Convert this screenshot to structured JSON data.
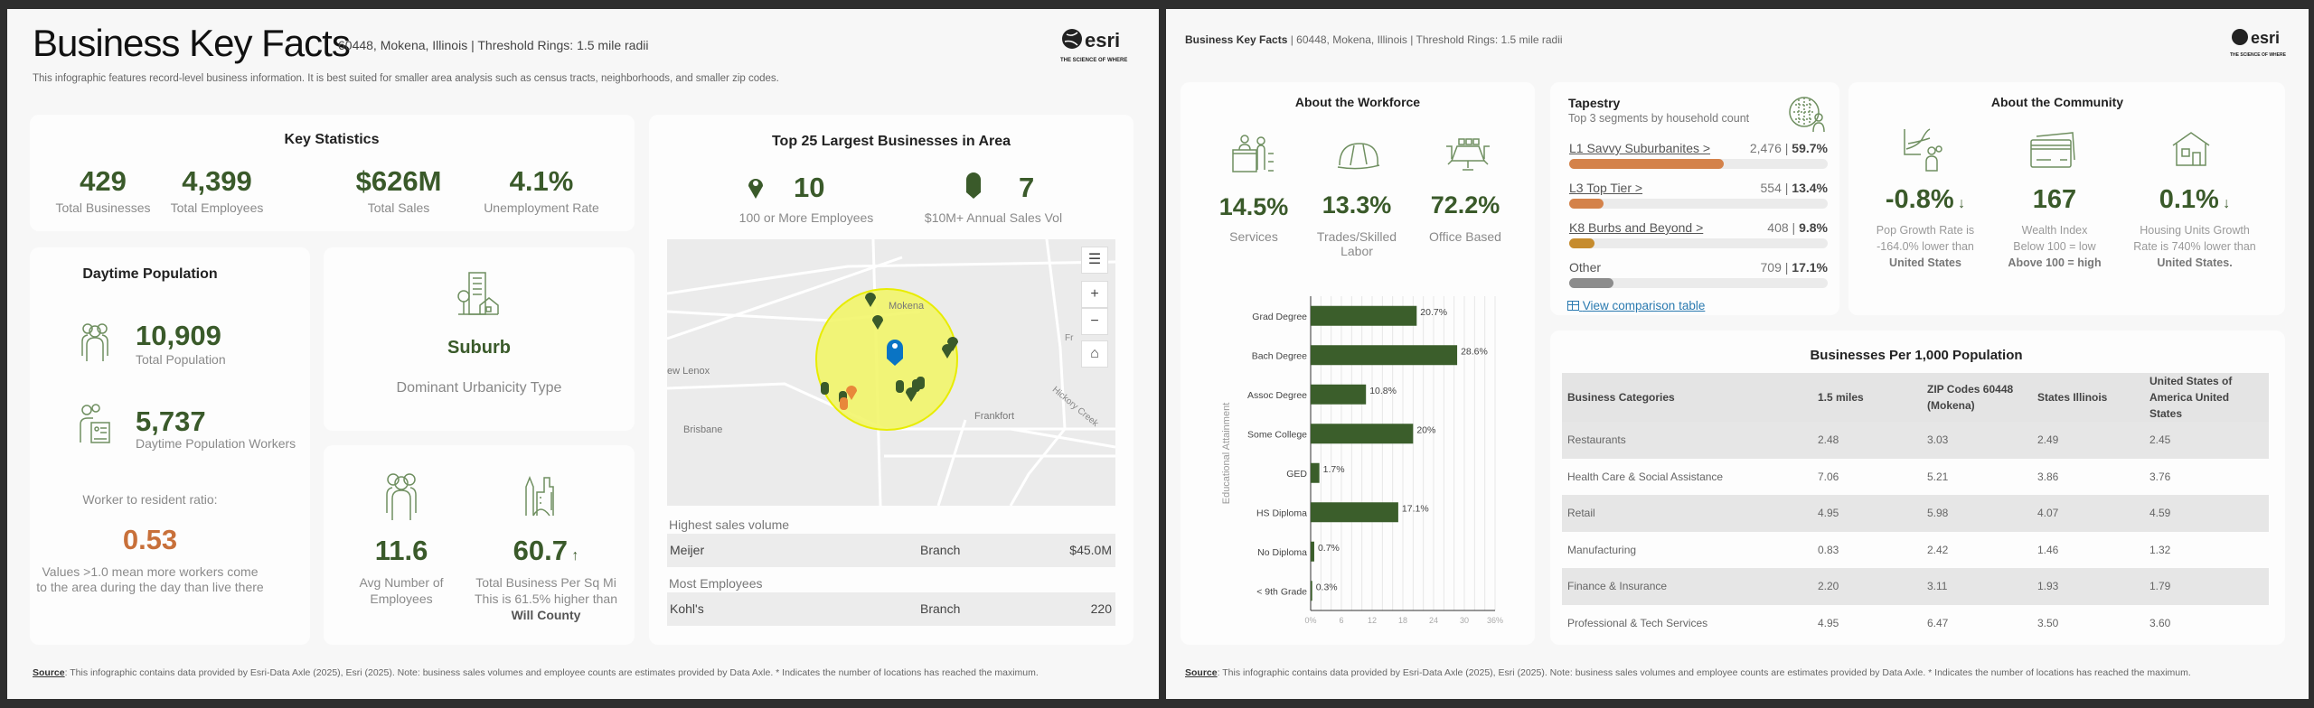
{
  "left": {
    "title": "Business Key Facts",
    "subtitle": "60448, Mokena, Illinois | Threshold Rings: 1.5 mile radii",
    "description": "This infographic features record-level business information. It is best suited for smaller area analysis such as census tracts, neighborhoods, and smaller zip codes.",
    "logo": {
      "name": "esri",
      "tagline": "THE SCIENCE OF WHERE"
    },
    "key_stats": {
      "title": "Key Statistics",
      "items": [
        {
          "value": "429",
          "label": "Total Businesses"
        },
        {
          "value": "4,399",
          "label": "Total Employees"
        },
        {
          "value": "$626M",
          "label": "Total Sales"
        },
        {
          "value": "4.1%",
          "label": "Unemployment Rate"
        }
      ]
    },
    "top25": {
      "title": "Top 25 Largest Businesses in Area",
      "emp": {
        "value": "10",
        "label": "100 or More Employees"
      },
      "sales": {
        "value": "7",
        "label": "$10M+ Annual Sales Vol"
      },
      "map": {
        "places": [
          "Mokena",
          "ew Lenox",
          "Brisbane",
          "Frankfort",
          "Hickory Creek",
          "Fr"
        ]
      },
      "highest_sales_label": "Highest sales volume",
      "highest_sales": {
        "name": "Meijer",
        "type": "Branch",
        "value": "$45.0M"
      },
      "most_emp_label": "Most Employees",
      "most_emp": {
        "name": "Kohl's",
        "type": "Branch",
        "value": "220"
      }
    },
    "daytime": {
      "title": "Daytime Population",
      "total_pop": "10,909",
      "total_pop_label": "Total Population",
      "workers": "5,737",
      "workers_label": "Daytime Population Workers",
      "ratio_label": "Worker to resident ratio:",
      "ratio": "0.53",
      "ratio_note1": "Values >1.0 mean more workers come",
      "ratio_note2": "to the area during the day than live there"
    },
    "urbanicity": {
      "value": "Suburb",
      "label": "Dominant Urbanicity Type"
    },
    "density": {
      "avg": "11.6",
      "avg_label1": "Avg Number of",
      "avg_label2": "Employees",
      "per_sqmi": "60.7",
      "arrow": "↑",
      "per_sqmi_label1": "Total Business Per Sq Mi",
      "per_sqmi_label2": "This is 61.5% higher than",
      "per_sqmi_label3": "Will County"
    },
    "source_label": "Source",
    "source": ": This infographic contains data provided by Esri-Data Axle (2025), Esri (2025). Note: business sales volumes and employee counts are estimates provided by Data Axle. * Indicates the number of locations has reached the maximum."
  },
  "right": {
    "header_title": "Business Key Facts",
    "header_rest": " | 60448, Mokena, Illinois | Threshold Rings: 1.5 mile radii",
    "workforce": {
      "title": "About the Workforce",
      "items": [
        {
          "value": "14.5%",
          "label": "Services"
        },
        {
          "value": "13.3%",
          "label": "Trades/Skilled Labor"
        },
        {
          "value": "72.2%",
          "label": "Office Based"
        }
      ]
    },
    "tapestry": {
      "title": "Tapestry",
      "subtitle": "Top 3 segments by household count",
      "segments": [
        {
          "name": "L1 Savvy Suburbanites >",
          "count": "2,476",
          "pct": "59.7%",
          "share": 59.7,
          "color": "#d4824a"
        },
        {
          "name": "L3 Top Tier >",
          "count": "554",
          "pct": "13.4%",
          "share": 13.4,
          "color": "#d4824a"
        },
        {
          "name": "K8 Burbs and Beyond >",
          "count": "408",
          "pct": "9.8%",
          "share": 9.8,
          "color": "#c68c2e"
        },
        {
          "name": "Other",
          "count": "709",
          "pct": "17.1%",
          "share": 17.1,
          "color": "#8c8c8c"
        }
      ],
      "link": "View comparison table"
    },
    "community": {
      "title": "About the Community",
      "items": [
        {
          "value": "-0.8%",
          "arrow": "↓",
          "l1": "Pop Growth Rate is",
          "l2": "-164.0% lower than",
          "l3": "United States"
        },
        {
          "value": "167",
          "arrow": "",
          "l1": "Wealth Index",
          "l2": "Below 100 = low",
          "l3": "Above 100 = high"
        },
        {
          "value": "0.1%",
          "arrow": "↓",
          "l1": "Housing Units Growth",
          "l2": "Rate is 740% lower than",
          "l3": "United States."
        }
      ]
    },
    "biz_table": {
      "title": "Businesses Per 1,000 Population",
      "headers": [
        "Business Categories",
        "1.5 miles",
        "ZIP Codes 60448 (Mokena)",
        "States Illinois",
        "United States of America United States"
      ],
      "rows": [
        [
          "Restaurants",
          "2.48",
          "3.03",
          "2.49",
          "2.45"
        ],
        [
          "Health Care & Social Assistance",
          "7.06",
          "5.21",
          "3.86",
          "3.76"
        ],
        [
          "Retail",
          "4.95",
          "5.98",
          "4.07",
          "4.59"
        ],
        [
          "Manufacturing",
          "0.83",
          "2.42",
          "1.46",
          "1.32"
        ],
        [
          "Finance & Insurance",
          "2.20",
          "3.11",
          "1.93",
          "1.79"
        ],
        [
          "Professional & Tech Services",
          "4.95",
          "6.47",
          "3.50",
          "3.60"
        ]
      ]
    },
    "source_label": "Source",
    "source": ": This infographic contains data provided by Esri-Data Axle (2025), Esri (2025). Note: business sales volumes and employee counts are estimates provided by Data Axle. * Indicates the number of locations has reached the maximum."
  },
  "chart_data": {
    "type": "bar",
    "orientation": "horizontal",
    "ylabel": "Educational Attainment",
    "xlabel": "",
    "categories": [
      "Grad Degree",
      "Bach Degree",
      "Assoc Degree",
      "Some College",
      "GED",
      "HS Diploma",
      "No Diploma",
      "< 9th Grade"
    ],
    "values": [
      20.7,
      28.6,
      10.8,
      20,
      1.7,
      17.1,
      0.7,
      0.3
    ],
    "labels": [
      "20.7%",
      "28.6%",
      "10.8%",
      "20%",
      "1.7%",
      "17.1%",
      "0.7%",
      "0.3%"
    ],
    "xlim": [
      0,
      36
    ],
    "ticks": [
      "0%",
      "6",
      "12",
      "18",
      "24",
      "30",
      "36%"
    ],
    "color": "#3b5e2b",
    "grid": true
  },
  "colors": {
    "accent": "#3a5a2a",
    "ratio": "#c8703a",
    "link": "#2a7ab0"
  }
}
